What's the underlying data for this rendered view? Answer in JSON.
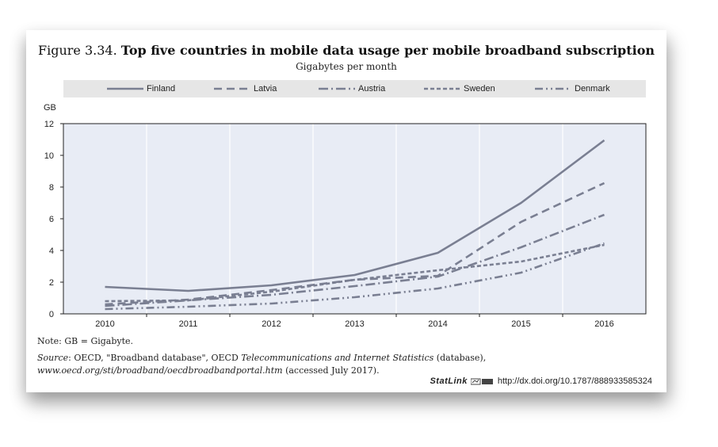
{
  "figure": {
    "number": "Figure 3.34.",
    "title": "Top five countries in mobile data usage per mobile broadband subscription",
    "subtitle": "Gigabytes per month",
    "note": "Note: GB = Gigabyte.",
    "source_prefix": "Source",
    "source_text": ": OECD, \"Broadband database\", OECD ",
    "source_italic": "Telecommunications and Internet Statistics",
    "source_rest": " (database), ",
    "source_url": "www.oecd.org/sti/broadband/oecdbroadbandportal.htm",
    "source_tail": " (accessed July 2017).",
    "statlink_label": "StatLink",
    "statlink_url": "http://dx.doi.org/10.1787/888933585324"
  },
  "chart_data": {
    "type": "line",
    "ylabel": "GB",
    "x": [
      "2010",
      "2011",
      "2012",
      "2013",
      "2014",
      "2015",
      "2016"
    ],
    "ylim": [
      0,
      12
    ],
    "yticks": [
      0,
      2,
      4,
      6,
      8,
      10,
      12
    ],
    "grid": "vertical",
    "legend_position": "top",
    "series": [
      {
        "name": "Finland",
        "values": [
          1.7,
          1.45,
          1.8,
          2.45,
          3.85,
          7.0,
          10.95
        ],
        "dash": "solid",
        "color": "#7a7f92"
      },
      {
        "name": "Latvia",
        "values": [
          0.6,
          0.9,
          1.5,
          2.15,
          2.4,
          5.8,
          8.25
        ],
        "dash": "long-dash",
        "color": "#7a7f92"
      },
      {
        "name": "Austria",
        "values": [
          0.5,
          0.85,
          1.2,
          1.75,
          2.35,
          4.2,
          6.25
        ],
        "dash": "dash-dot",
        "color": "#7a7f92"
      },
      {
        "name": "Sweden",
        "values": [
          0.8,
          0.85,
          1.4,
          2.15,
          2.75,
          3.3,
          4.35
        ],
        "dash": "short-dash",
        "color": "#7a7f92"
      },
      {
        "name": "Denmark",
        "values": [
          0.3,
          0.45,
          0.65,
          1.05,
          1.6,
          2.6,
          4.45
        ],
        "dash": "dash-dot-dot",
        "color": "#7a7f92"
      }
    ],
    "plot_bg": "#e8ecf5"
  }
}
